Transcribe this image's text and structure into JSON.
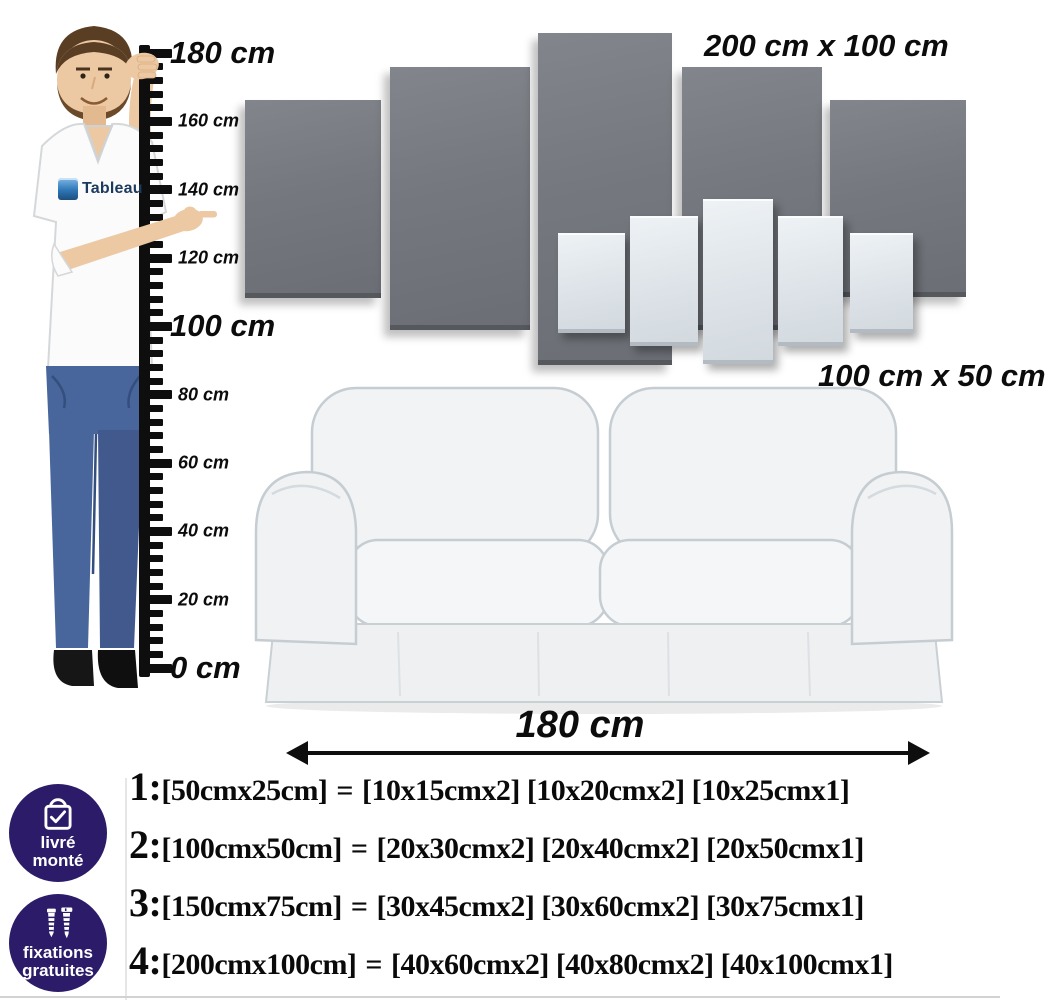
{
  "ruler": {
    "unit": "cm",
    "ticks": [
      {
        "label": "180 cm",
        "major": true
      },
      {
        "label": "160 cm",
        "major": false
      },
      {
        "label": "140 cm",
        "major": false
      },
      {
        "label": "120 cm",
        "major": false
      },
      {
        "label": "100 cm",
        "major": true
      },
      {
        "label": "80 cm",
        "major": false
      },
      {
        "label": "60 cm",
        "major": false
      },
      {
        "label": "40 cm",
        "major": false
      },
      {
        "label": "20 cm",
        "major": false
      },
      {
        "label": "0 cm",
        "major": true
      }
    ]
  },
  "canvas_sets": {
    "large_label": "200 cm x 100 cm",
    "small_label": "100 cm x 50 cm"
  },
  "sofa": {
    "width_label": "180 cm"
  },
  "logo": {
    "text": "Tableau"
  },
  "badges": [
    {
      "icon": "assembled-delivery-icon",
      "line1": "livré",
      "line2": "monté"
    },
    {
      "icon": "free-fixings-screws-icon",
      "line1": "fixations",
      "line2": "gratuites"
    }
  ],
  "size_options": [
    {
      "index": "1:",
      "size": "[50cmx25cm]",
      "separator": "=",
      "panels": "[10x15cmx2] [10x20cmx2] [10x25cmx1]"
    },
    {
      "index": "2:",
      "size": "[100cmx50cm]",
      "separator": "=",
      "panels": "[20x30cmx2] [20x40cmx2] [20x50cmx1]"
    },
    {
      "index": "3:",
      "size": "[150cmx75cm]",
      "separator": "=",
      "panels": "[30x45cmx2] [30x60cmx2] [30x75cmx1]"
    },
    {
      "index": "4:",
      "size": "[200cmx100cm]",
      "separator": "=",
      "panels": "[40x60cmx2] [40x80cmx2] [40x100cmx1]"
    }
  ],
  "colors": {
    "panel_dark": "#75797f",
    "panel_light": "#dde3e8",
    "badge_purple": "#2c1b69",
    "text": "#111111"
  }
}
